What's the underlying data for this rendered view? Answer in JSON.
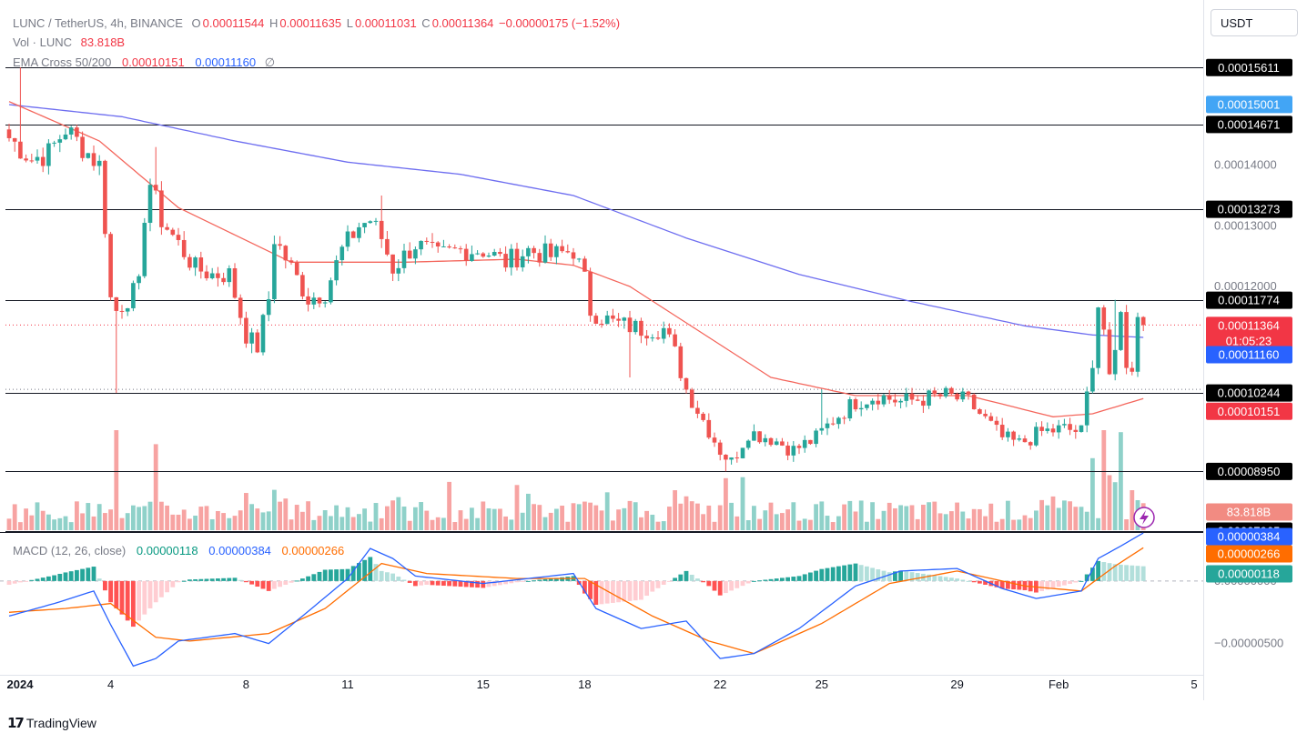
{
  "header": {
    "symbol": "LUNC / TetherUS, 4h, BINANCE",
    "o_label": "O",
    "o_value": "0.00011544",
    "h_label": "H",
    "h_value": "0.00011635",
    "l_label": "L",
    "l_value": "0.00011031",
    "c_label": "C",
    "c_value": "0.00011364",
    "change": "−0.00000175 (−1.52%)",
    "vol_label": "Vol · LUNC",
    "vol_value": "83.818B",
    "ema_label": "EMA Cross 50/200",
    "ema_fast": "0.00010151",
    "ema_slow": "0.00011160",
    "ema_symbol": "∅",
    "macd_label": "MACD (12, 26, close)",
    "macd_hist": "0.00000118",
    "macd_line": "0.00000384",
    "macd_signal": "0.00000266"
  },
  "currency_button": "USDT",
  "branding": {
    "name": "TradingView"
  },
  "colors": {
    "up": "#26a69a",
    "down": "#ef5350",
    "ema50": "#f4665c",
    "ema200": "#6e6ef0",
    "macd": "#2962ff",
    "signal": "#ff6d00",
    "up_vol": "#8fd1c9",
    "down_vol": "#f7a3a2"
  },
  "chart_data": {
    "type": "candlestick",
    "symbol": "LUNC/USDT",
    "interval": "4h",
    "exchange": "BINANCE",
    "price_axis_ticks": [
      0.00014,
      0.00013,
      0.00012
    ],
    "price_axis_tick_labels": [
      "0.00014000",
      "0.00013000",
      "0.00012000"
    ],
    "ylim": [
      8.55e-05,
      0.0001605
    ],
    "x_ticks": [
      {
        "label": "2024",
        "index": 0
      },
      {
        "label": "4",
        "index": 18
      },
      {
        "label": "8",
        "index": 42
      },
      {
        "label": "11",
        "index": 60
      },
      {
        "label": "15",
        "index": 84
      },
      {
        "label": "18",
        "index": 102
      },
      {
        "label": "22",
        "index": 126
      },
      {
        "label": "25",
        "index": 144
      },
      {
        "label": "29",
        "index": 168
      },
      {
        "label": "Feb",
        "index": 186
      },
      {
        "label": "5",
        "index": 210
      }
    ],
    "horizontal_lines": [
      {
        "value": 0.00015611,
        "label": "0.00015611"
      },
      {
        "value": 0.00014671,
        "label": "0.00014671"
      },
      {
        "value": 0.00013273,
        "label": "0.00013273"
      },
      {
        "value": 0.00011774,
        "label": "0.00011774"
      },
      {
        "value": 0.00010244,
        "label": "0.00010244"
      },
      {
        "value": 8.95e-05,
        "label": "0.00008950"
      },
      {
        "value": 7.965e-05,
        "label": "0.00007965"
      }
    ],
    "price_markers": [
      {
        "value": 0.00015001,
        "label": "0.00015001",
        "color": "#42a5f5"
      },
      {
        "value": 0.00011364,
        "label": "0.00011364",
        "sub": "01:05:23",
        "color": "#f23645"
      },
      {
        "value": 0.0001116,
        "label": "0.00011160",
        "color": "#2962ff"
      },
      {
        "value": 0.00010151,
        "label": "0.00010151",
        "color": "#f23645"
      }
    ],
    "volume_marker": {
      "label": "83.818B",
      "color": "#f7a3a2"
    },
    "macd_axis_ticks": [
      {
        "value": 0,
        "label": "0.00000000"
      },
      {
        "value": -5e-06,
        "label": "−0.00000500"
      }
    ],
    "macd_markers": [
      {
        "value": 3.84e-06,
        "label": "0.00000384",
        "color": "#2962ff"
      },
      {
        "value": 2.66e-06,
        "label": "0.00000266",
        "color": "#ff6d00"
      },
      {
        "value": 1.18e-06,
        "label": "0.00000118",
        "color": "#26a69a"
      }
    ],
    "macd_ylim": [
      -7.5e-06,
      3.7e-06
    ],
    "close_anchors": [
      [
        0,
        0.0001445
      ],
      [
        4,
        0.000141
      ],
      [
        7,
        0.000142
      ],
      [
        10,
        0.000146
      ],
      [
        13,
        0.000143
      ],
      [
        16,
        0.00014
      ],
      [
        17,
        0.00013
      ],
      [
        18,
        0.000118
      ],
      [
        19,
        0.000116
      ],
      [
        21,
        0.000118
      ],
      [
        23,
        0.00012
      ],
      [
        24,
        0.000132
      ],
      [
        25,
        0.000137
      ],
      [
        27,
        0.000131
      ],
      [
        30,
        0.000127
      ],
      [
        33,
        0.000123
      ],
      [
        36,
        0.000122
      ],
      [
        39,
        0.000122
      ],
      [
        42,
        0.000112
      ],
      [
        44,
        0.00011
      ],
      [
        46,
        0.000118
      ],
      [
        47,
        0.000128
      ],
      [
        50,
        0.000123
      ],
      [
        53,
        0.000118
      ],
      [
        56,
        0.000119
      ],
      [
        59,
        0.000126
      ],
      [
        62,
        0.00013
      ],
      [
        64,
        0.000131
      ],
      [
        66,
        0.000128
      ],
      [
        68,
        0.000123
      ],
      [
        72,
        0.000127
      ],
      [
        76,
        0.000125
      ],
      [
        80,
        0.000126
      ],
      [
        84,
        0.000126
      ],
      [
        88,
        0.000124
      ],
      [
        92,
        0.000126
      ],
      [
        96,
        0.000125
      ],
      [
        100,
        0.000126
      ],
      [
        102,
        0.000121
      ],
      [
        103,
        0.000116
      ],
      [
        107,
        0.000114
      ],
      [
        112,
        0.000113
      ],
      [
        116,
        0.000113
      ],
      [
        118,
        0.000109
      ],
      [
        120,
        0.000103
      ],
      [
        123,
        9.8e-05
      ],
      [
        126,
        9.3e-05
      ],
      [
        128,
        9.1e-05
      ],
      [
        131,
        9.6e-05
      ],
      [
        135,
        9.5e-05
      ],
      [
        139,
        9.3e-05
      ],
      [
        143,
        9.5e-05
      ],
      [
        146,
        9.8e-05
      ],
      [
        150,
        0.000101
      ],
      [
        154,
        0.000102
      ],
      [
        158,
        0.000101
      ],
      [
        162,
        0.0001015
      ],
      [
        166,
        0.000102
      ],
      [
        170,
        0.000101
      ],
      [
        173,
        9.8e-05
      ],
      [
        176,
        9.5e-05
      ],
      [
        179,
        9.4e-05
      ],
      [
        183,
        9.6e-05
      ],
      [
        187,
        9.65e-05
      ],
      [
        190,
        9.6e-05
      ],
      [
        192,
        0.000108
      ],
      [
        193,
        0.000117
      ],
      [
        194,
        0.000113
      ],
      [
        195,
        0.000104
      ],
      [
        196,
        0.000109
      ],
      [
        197,
        0.000117
      ],
      [
        198,
        0.000106
      ],
      [
        199,
        0.000107
      ],
      [
        200,
        0.000116
      ],
      [
        201,
        0.00011364
      ]
    ],
    "spikes": [
      {
        "index": 2,
        "high": 0.00015611
      },
      {
        "index": 19,
        "low": 0.00010244
      },
      {
        "index": 26,
        "high": 0.000143
      },
      {
        "index": 43,
        "low": 0.000109
      },
      {
        "index": 66,
        "high": 0.000135
      },
      {
        "index": 110,
        "low": 0.000105
      },
      {
        "index": 127,
        "low": 8.95e-05
      },
      {
        "index": 144,
        "high": 0.000103
      },
      {
        "index": 196,
        "high": 0.0001178
      }
    ],
    "ema50_anchors": [
      [
        0,
        0.0001505
      ],
      [
        16,
        0.000144
      ],
      [
        30,
        0.000133
      ],
      [
        50,
        0.000124
      ],
      [
        70,
        0.000124
      ],
      [
        90,
        0.0001245
      ],
      [
        100,
        0.0001235
      ],
      [
        110,
        0.00012
      ],
      [
        120,
        0.000114
      ],
      [
        135,
        0.000105
      ],
      [
        150,
        0.000102
      ],
      [
        170,
        0.000102
      ],
      [
        185,
        9.85e-05
      ],
      [
        192,
        9.9e-05
      ],
      [
        201,
        0.00010151
      ]
    ],
    "ema200_anchors": [
      [
        0,
        0.00015
      ],
      [
        20,
        0.000148
      ],
      [
        40,
        0.000144
      ],
      [
        60,
        0.0001405
      ],
      [
        80,
        0.0001385
      ],
      [
        100,
        0.000135
      ],
      [
        120,
        0.000128
      ],
      [
        140,
        0.000122
      ],
      [
        160,
        0.0001175
      ],
      [
        180,
        0.0001135
      ],
      [
        192,
        0.000112
      ],
      [
        201,
        0.0001116
      ]
    ],
    "volume_highlights": [
      {
        "index": 19,
        "value": 1.0
      },
      {
        "index": 26,
        "value": 0.86
      },
      {
        "index": 192,
        "value": 0.72
      },
      {
        "index": 194,
        "value": 1.0
      },
      {
        "index": 197,
        "value": 0.98
      },
      {
        "index": 195,
        "value": 0.55
      },
      {
        "index": 127,
        "value": 0.52
      },
      {
        "index": 196,
        "value": 0.48
      },
      {
        "index": 199,
        "value": 0.4
      },
      {
        "index": 200,
        "value": 0.3
      },
      {
        "index": 201,
        "value": 0.27
      }
    ]
  }
}
